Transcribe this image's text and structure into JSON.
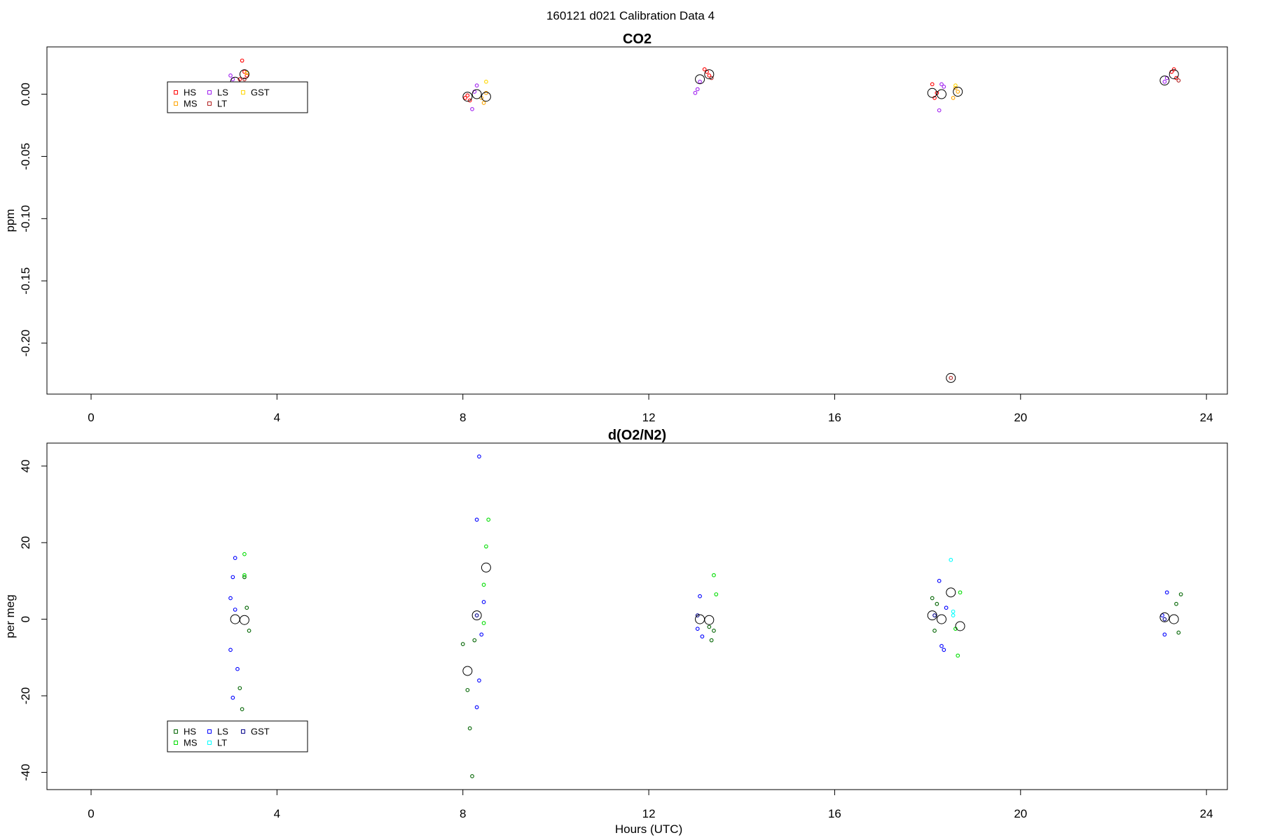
{
  "page_title": "160121   d021   Calibration Data 4",
  "chart_data": [
    {
      "type": "scatter",
      "title": "CO2",
      "xlabel": "",
      "ylabel": "ppm",
      "xlim": [
        -0.95,
        24.45
      ],
      "ylim": [
        -0.241,
        0.038
      ],
      "xticks": [
        0,
        4,
        8,
        12,
        16,
        20,
        24
      ],
      "yticks": [
        0.0,
        -0.05,
        -0.1,
        -0.15,
        -0.2
      ],
      "ytick_labels": [
        "0.00",
        "-0.05",
        "-0.10",
        "-0.15",
        "-0.20"
      ],
      "legend": {
        "placement": "top-left",
        "entries": [
          {
            "label": "HS",
            "color": "#ff0000"
          },
          {
            "label": "MS",
            "color": "#ffa500"
          },
          {
            "label": "LS",
            "color": "#a020f0"
          },
          {
            "label": "LT",
            "color": "#b22222"
          },
          {
            "label": "GST",
            "color": "#ffd700"
          }
        ]
      },
      "series": [
        {
          "name": "HS",
          "color": "#ff0000",
          "points": [
            [
              3.25,
              0.027
            ],
            [
              3.3,
              0.018
            ],
            [
              3.2,
              0.012
            ],
            [
              3.35,
              0.015
            ],
            [
              8.05,
              -0.003
            ],
            [
              8.1,
              -0.001
            ],
            [
              8.15,
              -0.005
            ],
            [
              13.2,
              0.02
            ],
            [
              13.3,
              0.015
            ],
            [
              13.25,
              0.018
            ],
            [
              18.1,
              0.008
            ],
            [
              18.15,
              -0.003
            ],
            [
              18.2,
              0.001
            ],
            [
              23.3,
              0.02
            ],
            [
              23.35,
              0.013
            ],
            [
              23.25,
              0.018
            ]
          ]
        },
        {
          "name": "MS",
          "color": "#ffa500",
          "points": [
            [
              8.4,
              -0.003
            ],
            [
              8.45,
              -0.007
            ],
            [
              8.5,
              0.001
            ],
            [
              18.6,
              0.005
            ],
            [
              18.55,
              -0.003
            ],
            [
              18.65,
              0.002
            ]
          ]
        },
        {
          "name": "LS",
          "color": "#a020f0",
          "points": [
            [
              3.0,
              0.015
            ],
            [
              3.05,
              0.012
            ],
            [
              3.1,
              0.008
            ],
            [
              8.2,
              -0.012
            ],
            [
              8.3,
              0.007
            ],
            [
              8.25,
              0.002
            ],
            [
              13.0,
              0.001
            ],
            [
              13.05,
              0.004
            ],
            [
              13.1,
              0.01
            ],
            [
              18.25,
              -0.013
            ],
            [
              18.3,
              0.008
            ],
            [
              18.35,
              0.006
            ],
            [
              23.1,
              0.01
            ],
            [
              23.15,
              0.013
            ]
          ]
        },
        {
          "name": "LT",
          "color": "#b22222",
          "points": [
            [
              3.3,
              0.012
            ],
            [
              13.35,
              0.013
            ],
            [
              18.5,
              -0.228
            ],
            [
              23.4,
              0.011
            ]
          ]
        },
        {
          "name": "GST",
          "color": "#ffd700",
          "points": [
            [
              8.5,
              0.01
            ],
            [
              18.6,
              0.007
            ],
            [
              3.35,
              0.017
            ]
          ]
        }
      ],
      "means": [
        [
          3.1,
          0.01
        ],
        [
          3.3,
          0.016
        ],
        [
          8.1,
          -0.002
        ],
        [
          8.3,
          0.0
        ],
        [
          8.5,
          -0.002
        ],
        [
          13.1,
          0.012
        ],
        [
          13.3,
          0.016
        ],
        [
          18.1,
          0.001
        ],
        [
          18.3,
          0.0
        ],
        [
          18.5,
          -0.228
        ],
        [
          18.65,
          0.002
        ],
        [
          23.1,
          0.011
        ],
        [
          23.3,
          0.016
        ]
      ]
    },
    {
      "type": "scatter",
      "title": "d(O2/N2)",
      "xlabel": "Hours (UTC)",
      "ylabel": "per meg",
      "xlim": [
        -0.95,
        24.45
      ],
      "ylim": [
        -44.5,
        46
      ],
      "xticks": [
        0,
        4,
        8,
        12,
        16,
        20,
        24
      ],
      "yticks": [
        40,
        20,
        0,
        -20,
        -40
      ],
      "ytick_labels": [
        "40",
        "20",
        "0",
        "-20",
        "-40"
      ],
      "legend": {
        "placement": "bottom-left",
        "entries": [
          {
            "label": "HS",
            "color": "#006400"
          },
          {
            "label": "MS",
            "color": "#00dd00"
          },
          {
            "label": "LS",
            "color": "#0000ff"
          },
          {
            "label": "LT",
            "color": "#00ffff"
          },
          {
            "label": "GST",
            "color": "#00008b"
          }
        ]
      },
      "series": [
        {
          "name": "HS",
          "color": "#006400",
          "points": [
            [
              3.2,
              -18
            ],
            [
              3.25,
              -23.5
            ],
            [
              3.3,
              11
            ],
            [
              3.35,
              3
            ],
            [
              3.4,
              -3
            ],
            [
              8.0,
              -6.5
            ],
            [
              8.1,
              -18.5
            ],
            [
              8.15,
              -28.5
            ],
            [
              8.2,
              -41
            ],
            [
              8.25,
              -5.5
            ],
            [
              13.3,
              -2
            ],
            [
              13.35,
              -5.5
            ],
            [
              13.4,
              -3
            ],
            [
              18.1,
              5.5
            ],
            [
              18.15,
              -3
            ],
            [
              18.2,
              4
            ],
            [
              23.35,
              4
            ],
            [
              23.4,
              -3.5
            ],
            [
              23.45,
              6.5
            ]
          ]
        },
        {
          "name": "MS",
          "color": "#00dd00",
          "points": [
            [
              3.3,
              17
            ],
            [
              3.3,
              11.5
            ],
            [
              8.45,
              9
            ],
            [
              8.5,
              19
            ],
            [
              8.55,
              26
            ],
            [
              8.45,
              -1
            ],
            [
              13.4,
              11.5
            ],
            [
              13.45,
              6.5
            ],
            [
              18.6,
              -2.5
            ],
            [
              18.65,
              -9.5
            ],
            [
              18.7,
              7
            ]
          ]
        },
        {
          "name": "LS",
          "color": "#0000ff",
          "points": [
            [
              3.0,
              5.5
            ],
            [
              3.05,
              11
            ],
            [
              3.1,
              16
            ],
            [
              3.15,
              -13
            ],
            [
              3.0,
              -8
            ],
            [
              3.05,
              -20.5
            ],
            [
              3.1,
              2.5
            ],
            [
              8.3,
              -23
            ],
            [
              8.35,
              -16
            ],
            [
              8.4,
              -4
            ],
            [
              8.45,
              4.5
            ],
            [
              8.3,
              26
            ],
            [
              8.35,
              42.5
            ],
            [
              13.05,
              -2.5
            ],
            [
              13.1,
              6
            ],
            [
              13.15,
              -4.5
            ],
            [
              18.25,
              10
            ],
            [
              18.3,
              -7
            ],
            [
              18.35,
              -8
            ],
            [
              18.4,
              3
            ],
            [
              23.05,
              1
            ],
            [
              23.1,
              -4
            ],
            [
              23.15,
              7
            ]
          ]
        },
        {
          "name": "LT",
          "color": "#00ffff",
          "points": [
            [
              18.5,
              15.5
            ],
            [
              18.55,
              2
            ],
            [
              18.55,
              1
            ]
          ]
        },
        {
          "name": "GST",
          "color": "#00008b",
          "points": [
            [
              13.05,
              1
            ],
            [
              23.1,
              0
            ],
            [
              18.15,
              1
            ],
            [
              8.3,
              1
            ]
          ]
        }
      ],
      "means": [
        [
          3.1,
          0
        ],
        [
          3.3,
          -0.2
        ],
        [
          8.1,
          -13.5
        ],
        [
          8.3,
          1
        ],
        [
          8.5,
          13.5
        ],
        [
          13.1,
          0
        ],
        [
          13.3,
          -0.2
        ],
        [
          18.1,
          1
        ],
        [
          18.3,
          0
        ],
        [
          18.5,
          7
        ],
        [
          18.7,
          -1.8
        ],
        [
          23.1,
          0.5
        ],
        [
          23.3,
          0
        ]
      ]
    }
  ]
}
